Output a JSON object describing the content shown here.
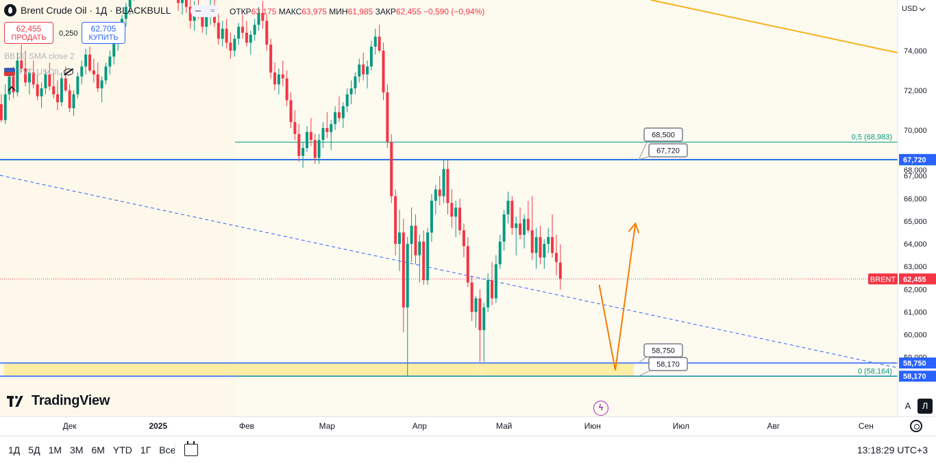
{
  "header": {
    "symbol_title": "Brent Crude Oil · 1Д · BLACKBULL",
    "ohlc": [
      {
        "key": "ОТКР",
        "value": "63,175"
      },
      {
        "key": "МАКС",
        "value": "63,975"
      },
      {
        "key": "МИН",
        "value": "61,985"
      },
      {
        "key": "ЗАКР",
        "value": "62,455"
      },
      {
        "key": "",
        "value": "−0,590 (−0,94%)"
      }
    ],
    "pill_icon": "wave-icon",
    "currency": "USD"
  },
  "trade": {
    "sell_price": "62,455",
    "sell_label": "ПРОДАТЬ",
    "spread": "0,250",
    "buy_price": "62,705",
    "buy_label": "КУПИТЬ"
  },
  "indicators": {
    "bb": "BB 20 SMA close 2",
    "compare": "TVC:USOIL"
  },
  "branding": {
    "logo_text": "TradingView"
  },
  "chart_data": {
    "type": "candlestick",
    "symbol": "BRENT",
    "y_ticks": [
      59000,
      60000,
      61000,
      62000,
      63000,
      64000,
      65000,
      66000,
      67000,
      68000,
      70000,
      72000,
      74000
    ],
    "y_tick_labels": [
      "59,000",
      "60,000",
      "61,000",
      "62,000",
      "63,000",
      "64,000",
      "65,000",
      "66,000",
      "67,000",
      "68,000",
      "70,000",
      "72,000",
      "74,000"
    ],
    "x_ticks": [
      {
        "label": "Дек",
        "index": 18
      },
      {
        "label": "2025",
        "index": 40
      },
      {
        "label": "Фев",
        "index": 62
      },
      {
        "label": "Мар",
        "index": 82
      },
      {
        "label": "Апр",
        "index": 105
      },
      {
        "label": "Май",
        "index": 126
      },
      {
        "label": "Июн",
        "index": 148
      },
      {
        "label": "Июл",
        "index": 170
      },
      {
        "label": "Авг",
        "index": 193
      },
      {
        "label": "Сен",
        "index": 216
      }
    ],
    "ohlc": [
      [
        72.0,
        72.6,
        71.0,
        71.3
      ],
      [
        71.3,
        71.8,
        70.4,
        70.5
      ],
      [
        70.5,
        72.3,
        70.3,
        71.8
      ],
      [
        71.8,
        73.0,
        71.5,
        72.7
      ],
      [
        72.7,
        73.2,
        71.6,
        71.9
      ],
      [
        71.9,
        73.9,
        71.7,
        73.5
      ],
      [
        73.5,
        74.3,
        72.9,
        73.1
      ],
      [
        73.1,
        74.0,
        72.2,
        72.4
      ],
      [
        72.4,
        73.1,
        71.8,
        72.9
      ],
      [
        72.9,
        73.5,
        72.1,
        72.3
      ],
      [
        72.3,
        72.8,
        71.5,
        71.7
      ],
      [
        71.7,
        72.4,
        71.1,
        72.1
      ],
      [
        72.1,
        73.0,
        71.8,
        72.8
      ],
      [
        72.8,
        73.4,
        72.0,
        72.2
      ],
      [
        72.2,
        72.9,
        71.6,
        71.8
      ],
      [
        71.8,
        72.5,
        71.0,
        71.4
      ],
      [
        71.4,
        72.9,
        71.2,
        72.6
      ],
      [
        72.6,
        73.2,
        71.9,
        72.0
      ],
      [
        72.0,
        72.3,
        70.9,
        71.1
      ],
      [
        71.1,
        72.0,
        70.7,
        71.8
      ],
      [
        71.8,
        72.9,
        71.6,
        72.7
      ],
      [
        72.7,
        73.5,
        72.3,
        73.2
      ],
      [
        73.2,
        74.1,
        72.8,
        73.8
      ],
      [
        73.8,
        74.2,
        72.9,
        73.0
      ],
      [
        73.0,
        73.6,
        72.4,
        72.8
      ],
      [
        72.8,
        73.4,
        71.9,
        72.1
      ],
      [
        72.1,
        72.7,
        71.4,
        72.5
      ],
      [
        72.5,
        73.4,
        72.3,
        73.2
      ],
      [
        73.2,
        74.0,
        72.8,
        73.7
      ],
      [
        73.7,
        74.6,
        73.3,
        74.4
      ],
      [
        74.4,
        75.3,
        74.0,
        75.1
      ],
      [
        75.1,
        75.8,
        74.5,
        75.6
      ],
      [
        75.6,
        76.4,
        75.2,
        76.2
      ],
      [
        76.2,
        77.0,
        75.8,
        76.8
      ],
      [
        76.8,
        78.2,
        76.5,
        77.9
      ],
      [
        77.9,
        79.5,
        77.6,
        79.2
      ],
      [
        79.2,
        80.4,
        78.8,
        80.1
      ],
      [
        80.1,
        81.0,
        79.2,
        79.6
      ],
      [
        79.6,
        80.3,
        78.4,
        78.9
      ],
      [
        78.9,
        80.2,
        78.5,
        79.9
      ],
      [
        79.9,
        81.2,
        79.4,
        80.7
      ],
      [
        80.7,
        81.0,
        79.2,
        79.5
      ],
      [
        79.5,
        79.9,
        77.9,
        78.2
      ],
      [
        78.2,
        79.0,
        77.4,
        77.6
      ],
      [
        77.6,
        78.3,
        76.8,
        77.1
      ],
      [
        77.1,
        77.8,
        76.0,
        76.4
      ],
      [
        76.4,
        77.2,
        75.8,
        76.9
      ],
      [
        76.9,
        77.4,
        75.9,
        76.2
      ],
      [
        76.2,
        76.8,
        75.1,
        75.5
      ],
      [
        75.5,
        76.5,
        75.0,
        76.1
      ],
      [
        76.1,
        76.9,
        75.6,
        75.9
      ],
      [
        75.9,
        76.3,
        74.9,
        75.2
      ],
      [
        75.2,
        76.1,
        74.8,
        75.8
      ],
      [
        75.8,
        76.6,
        75.3,
        76.3
      ],
      [
        76.3,
        76.7,
        75.2,
        75.4
      ],
      [
        75.4,
        75.9,
        74.3,
        74.6
      ],
      [
        74.6,
        75.5,
        74.2,
        75.1
      ],
      [
        75.1,
        75.6,
        74.1,
        74.4
      ],
      [
        74.4,
        74.9,
        73.6,
        74.0
      ],
      [
        74.0,
        74.8,
        73.7,
        74.6
      ],
      [
        74.6,
        75.4,
        74.3,
        75.2
      ],
      [
        75.2,
        75.8,
        74.6,
        74.9
      ],
      [
        74.9,
        75.5,
        74.2,
        74.4
      ],
      [
        74.4,
        75.0,
        73.8,
        74.8
      ],
      [
        74.8,
        75.6,
        74.5,
        75.3
      ],
      [
        75.3,
        76.2,
        75.0,
        75.9
      ],
      [
        75.9,
        76.5,
        75.1,
        75.5
      ],
      [
        75.5,
        75.8,
        74.0,
        74.3
      ],
      [
        74.3,
        74.6,
        72.6,
        72.9
      ],
      [
        72.9,
        73.4,
        72.0,
        72.3
      ],
      [
        72.3,
        73.1,
        71.8,
        72.8
      ],
      [
        72.8,
        73.5,
        72.2,
        72.6
      ],
      [
        72.6,
        73.0,
        71.2,
        71.5
      ],
      [
        71.5,
        71.9,
        70.1,
        70.4
      ],
      [
        70.4,
        71.0,
        69.5,
        69.8
      ],
      [
        69.8,
        70.3,
        68.4,
        68.7
      ],
      [
        68.7,
        69.4,
        68.1,
        69.1
      ],
      [
        69.1,
        70.2,
        68.9,
        69.9
      ],
      [
        69.9,
        70.6,
        69.2,
        69.5
      ],
      [
        69.5,
        69.8,
        68.3,
        68.6
      ],
      [
        68.6,
        69.8,
        68.3,
        69.5
      ],
      [
        69.5,
        70.4,
        69.1,
        70.1
      ],
      [
        70.1,
        70.9,
        69.6,
        69.9
      ],
      [
        69.9,
        70.5,
        69.0,
        70.3
      ],
      [
        70.3,
        71.2,
        70.0,
        70.9
      ],
      [
        70.9,
        71.7,
        70.4,
        70.6
      ],
      [
        70.6,
        71.4,
        70.1,
        71.2
      ],
      [
        71.2,
        72.1,
        70.9,
        71.8
      ],
      [
        71.8,
        72.5,
        71.3,
        72.1
      ],
      [
        72.1,
        72.9,
        71.8,
        72.7
      ],
      [
        72.7,
        73.6,
        72.4,
        73.3
      ],
      [
        73.3,
        73.9,
        72.5,
        72.8
      ],
      [
        72.8,
        73.5,
        72.1,
        73.2
      ],
      [
        73.2,
        74.5,
        73.0,
        74.2
      ],
      [
        74.2,
        75.1,
        73.8,
        74.7
      ],
      [
        74.7,
        75.3,
        73.9,
        74.0
      ],
      [
        74.0,
        74.4,
        71.5,
        71.9
      ],
      [
        71.9,
        72.3,
        69.1,
        69.4
      ],
      [
        69.4,
        69.8,
        65.8,
        66.1
      ],
      [
        66.1,
        66.4,
        63.5,
        64.0
      ],
      [
        64.0,
        65.5,
        62.8,
        64.5
      ],
      [
        64.5,
        65.1,
        60.1,
        61.2
      ],
      [
        61.2,
        64.3,
        58.2,
        64.0
      ],
      [
        64.0,
        65.6,
        63.2,
        64.8
      ],
      [
        64.8,
        65.3,
        63.1,
        63.5
      ],
      [
        63.5,
        64.4,
        62.3,
        64.1
      ],
      [
        64.1,
        64.6,
        62.2,
        62.4
      ],
      [
        62.4,
        64.7,
        62.2,
        64.5
      ],
      [
        64.5,
        66.2,
        64.1,
        65.9
      ],
      [
        65.9,
        66.6,
        65.3,
        66.4
      ],
      [
        66.4,
        67.0,
        65.7,
        66.1
      ],
      [
        66.1,
        67.7,
        65.8,
        67.3
      ],
      [
        67.3,
        67.7,
        65.3,
        65.8
      ],
      [
        65.8,
        66.4,
        64.7,
        65.2
      ],
      [
        65.2,
        65.9,
        64.3,
        65.6
      ],
      [
        65.6,
        66.0,
        64.4,
        64.6
      ],
      [
        64.6,
        64.9,
        63.4,
        63.9
      ],
      [
        63.9,
        64.3,
        62.1,
        62.3
      ],
      [
        62.3,
        62.6,
        60.6,
        61.0
      ],
      [
        61.0,
        61.7,
        60.3,
        61.6
      ],
      [
        61.6,
        62.0,
        58.8,
        60.2
      ],
      [
        60.2,
        61.4,
        58.8,
        61.2
      ],
      [
        61.2,
        62.7,
        61.0,
        62.4
      ],
      [
        62.4,
        63.2,
        61.3,
        61.6
      ],
      [
        61.6,
        63.5,
        61.4,
        63.1
      ],
      [
        63.1,
        64.4,
        62.9,
        64.1
      ],
      [
        64.1,
        65.5,
        63.7,
        65.3
      ],
      [
        65.3,
        66.3,
        64.9,
        65.9
      ],
      [
        65.9,
        66.1,
        64.4,
        64.7
      ],
      [
        64.7,
        65.2,
        63.5,
        64.9
      ],
      [
        64.9,
        65.6,
        64.2,
        64.4
      ],
      [
        64.4,
        65.3,
        63.8,
        65.1
      ],
      [
        65.1,
        65.9,
        64.5,
        64.6
      ],
      [
        64.6,
        66.1,
        63.3,
        63.6
      ],
      [
        63.6,
        64.7,
        62.9,
        64.3
      ],
      [
        64.3,
        64.8,
        63.1,
        63.4
      ],
      [
        63.4,
        64.2,
        62.9,
        64.0
      ],
      [
        64.0,
        64.7,
        63.6,
        64.3
      ],
      [
        64.3,
        65.3,
        63.4,
        63.6
      ],
      [
        63.6,
        64.4,
        62.6,
        63.2
      ],
      [
        63.175,
        63.975,
        61.985,
        62.455
      ]
    ],
    "h_lines": [
      {
        "price": 68.5,
        "color": "#089981",
        "label": "68,500"
      },
      {
        "price": 67.72,
        "color": "#2962ff",
        "label": "67,720"
      },
      {
        "price": 58.75,
        "color": "#2962ff",
        "label": "58,750"
      },
      {
        "price": 58.17,
        "color": "#2962ff",
        "label": "58,170"
      }
    ],
    "fib_levels": [
      {
        "price": 68.983,
        "label": "0,5 (68,983)",
        "color": "#089981"
      },
      {
        "price": 58.164,
        "label": "0 (58,164)",
        "color": "#089981"
      }
    ],
    "zones": [
      {
        "from": 67.72,
        "to": 68.5
      },
      {
        "from": 58.17,
        "to": 58.75
      }
    ],
    "callouts": [
      {
        "text": "68,500",
        "price": 68.5
      },
      {
        "text": "67,720",
        "price": 67.72
      },
      {
        "text": "58,750",
        "price": 58.75
      },
      {
        "text": "58,170",
        "price": 58.17
      }
    ],
    "last_price": {
      "label": "BRENT",
      "value": "62,455",
      "price": 62.455
    },
    "projection": [
      {
        "index": 150,
        "price": 62.2
      },
      {
        "index": 154,
        "price": 58.43
      },
      {
        "index": 159,
        "price": 64.9
      }
    ],
    "colors": {
      "up": "#089981",
      "down": "#f23645",
      "projection": "#f57c00",
      "trendline": "#f5b21a",
      "dashed": "#2962ff"
    }
  },
  "time_range_buttons": [
    "1Д",
    "5Д",
    "1М",
    "3М",
    "6М",
    "YTD",
    "1Г",
    "Все"
  ],
  "clock": "13:18:29 UTC+3",
  "scale_buttons": {
    "auto": "A",
    "log": "Л"
  }
}
